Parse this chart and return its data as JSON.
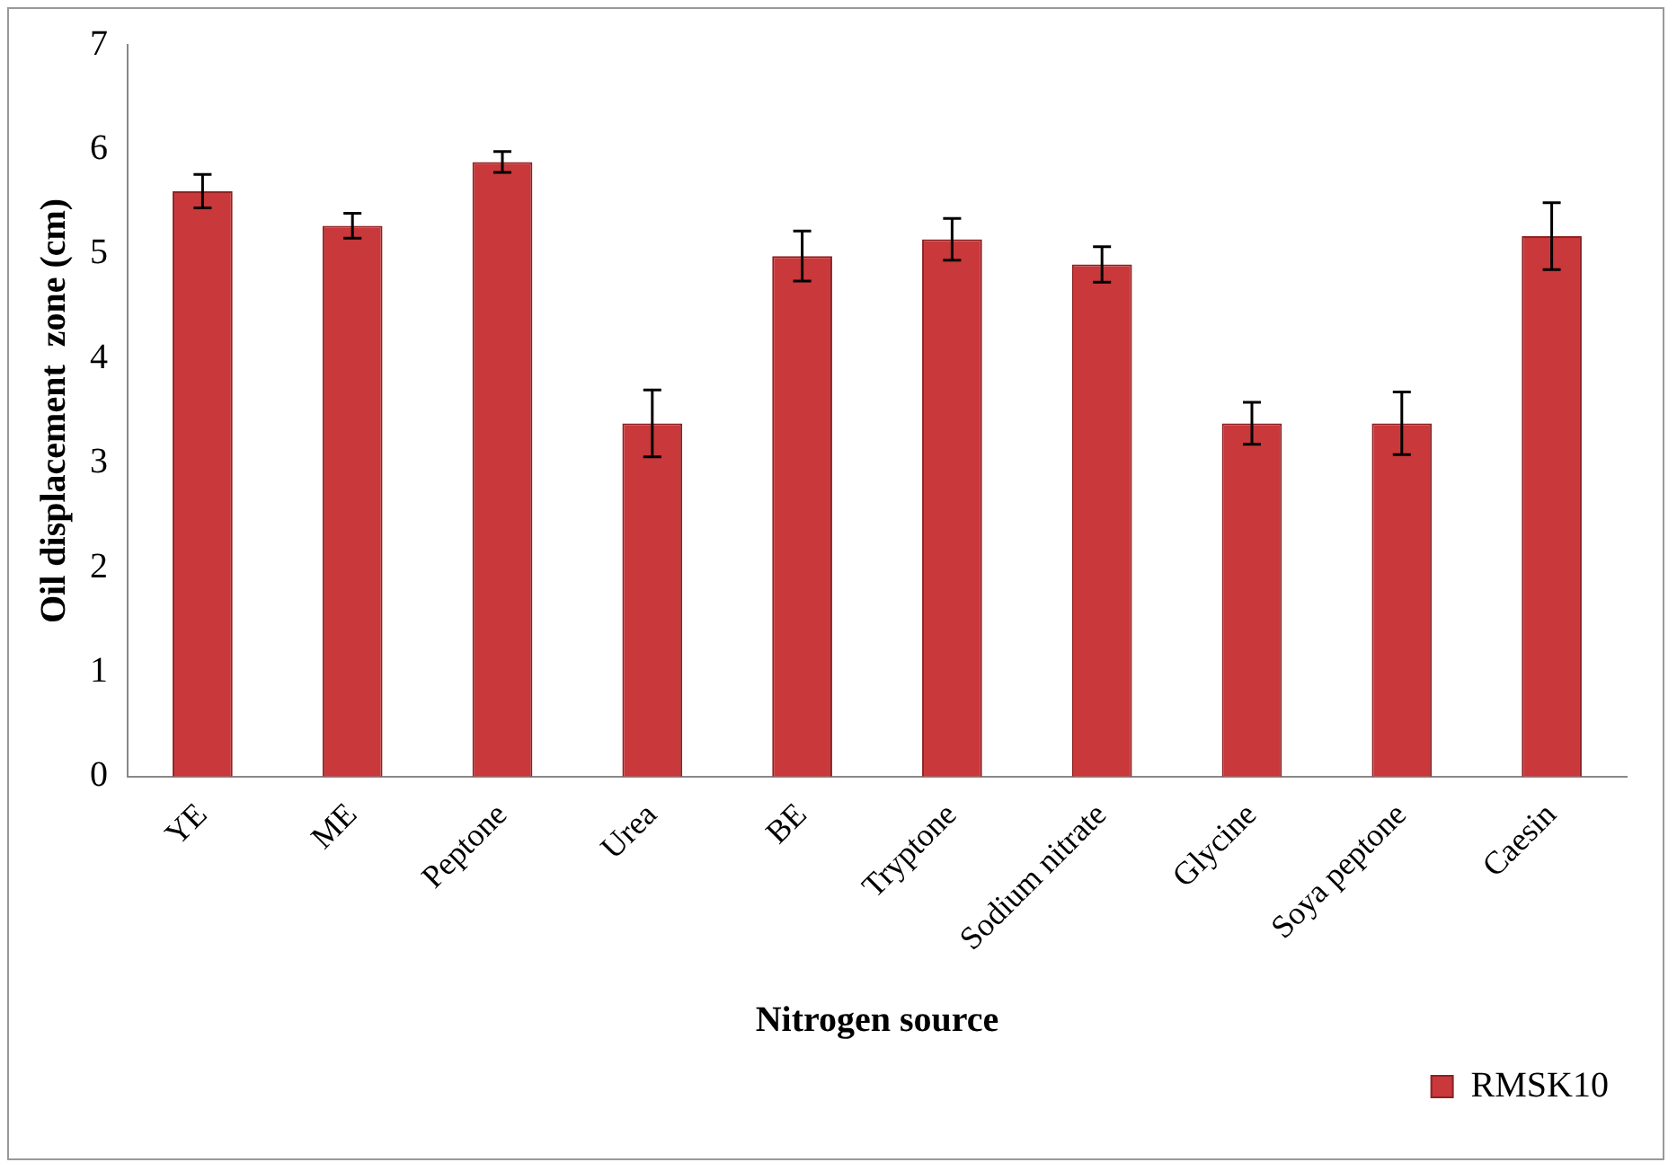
{
  "chart_data": {
    "type": "bar",
    "xlabel": "Nitrogen source",
    "ylabel": "Oil displacement  zone (cm)",
    "categories": [
      "YE",
      "ME",
      "Peptone",
      "Urea",
      "BE",
      "Tryptone",
      "Sodium nitrate",
      "Glycine",
      "Soya peptone",
      "Caesin"
    ],
    "series": [
      {
        "name": "RMSK10",
        "color": "#c9383a",
        "values": [
          5.6,
          5.27,
          5.88,
          3.38,
          4.98,
          5.14,
          4.9,
          3.38,
          3.38,
          5.17
        ],
        "errors": [
          0.16,
          0.12,
          0.1,
          0.32,
          0.24,
          0.2,
          0.17,
          0.2,
          0.3,
          0.32
        ]
      }
    ],
    "ylim": [
      0,
      7
    ],
    "yticks": [
      0,
      1,
      2,
      3,
      4,
      5,
      6,
      7
    ],
    "grid": false,
    "legend": "bottom right"
  }
}
